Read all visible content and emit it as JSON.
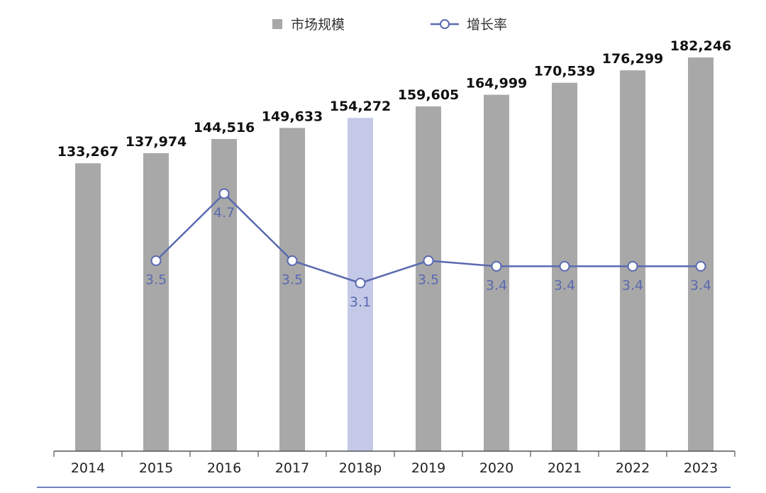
{
  "chart_data": {
    "type": "bar",
    "categories": [
      "2014",
      "2015",
      "2016",
      "2017",
      "2018p",
      "2019",
      "2020",
      "2021",
      "2022",
      "2023"
    ],
    "series": [
      {
        "name": "市场规模",
        "type": "bar",
        "values": [
          133267,
          137974,
          144516,
          149633,
          154272,
          159605,
          164999,
          170539,
          176299,
          182246
        ],
        "value_labels": [
          "133,267",
          "137,974",
          "144,516",
          "149,633",
          "154,272",
          "159,605",
          "164,999",
          "170,539",
          "176,299",
          "182,246"
        ]
      },
      {
        "name": "增长率",
        "type": "line",
        "values": [
          null,
          3.5,
          4.7,
          3.5,
          3.1,
          3.5,
          3.4,
          3.4,
          3.4,
          3.4
        ],
        "value_labels": [
          "",
          "3.5",
          "4.7",
          "3.5",
          "3.1",
          "3.5",
          "3.4",
          "3.4",
          "3.4",
          "3.4"
        ]
      }
    ],
    "highlight_category": "2018p",
    "ylim": [
      0,
      200000
    ],
    "y2lim": [
      0,
      8
    ],
    "legend_position": "top-center",
    "grid": false,
    "colors": {
      "bar": "#a8a8a8",
      "bar_highlight": "#c5c9e8",
      "line": "#5a6ab0",
      "marker_fill": "#ffffff",
      "axis": "#555555",
      "bottom_rule": "#6f7fc0"
    }
  }
}
